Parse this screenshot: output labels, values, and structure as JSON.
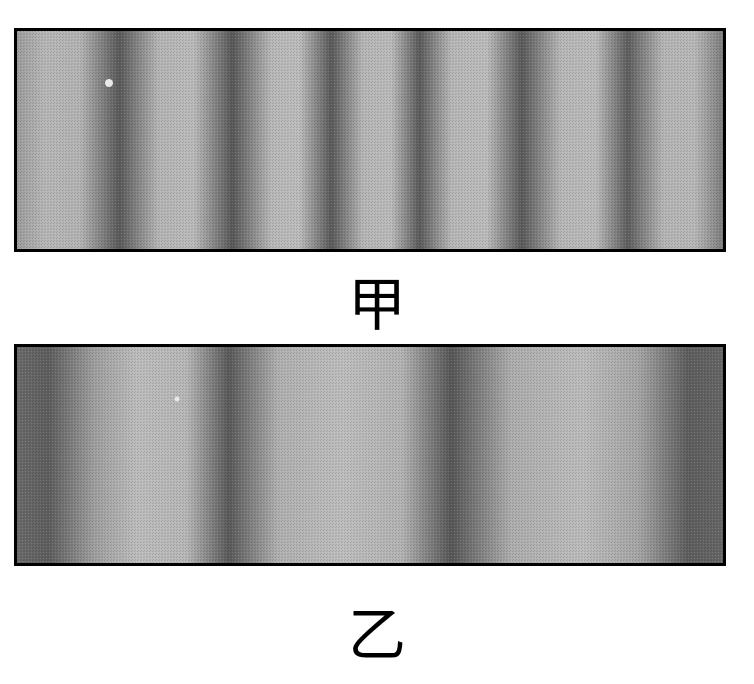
{
  "captions": {
    "top": "甲",
    "bottom": "乙"
  },
  "colors": {
    "border": "#000000",
    "background": "#ffffff",
    "fringe_dark": "#555555",
    "fringe_light": "#b9b9b9"
  }
}
